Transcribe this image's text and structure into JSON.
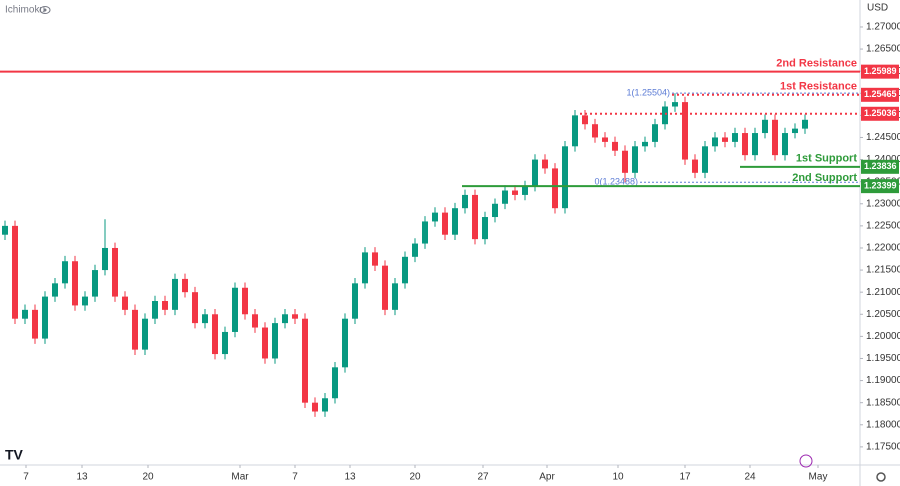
{
  "chart_data": {
    "type": "candlestick",
    "indicator": "Ichimoku",
    "currency": "USD",
    "up_color": "#089981",
    "down_color": "#f23645",
    "grid": false,
    "xlim": [
      -0.5,
      85.5
    ],
    "ylim": [
      1.1709,
      1.2761
    ],
    "xticks": [
      {
        "value": 2.1,
        "label": "7"
      },
      {
        "value": 7.7,
        "label": "13"
      },
      {
        "value": 14.3,
        "label": "20"
      },
      {
        "value": 23.5,
        "label": "Mar"
      },
      {
        "value": 29,
        "label": "7"
      },
      {
        "value": 34.5,
        "label": "13"
      },
      {
        "value": 41,
        "label": "20"
      },
      {
        "value": 47.8,
        "label": "27"
      },
      {
        "value": 54.2,
        "label": "Apr"
      },
      {
        "value": 61.3,
        "label": "10"
      },
      {
        "value": 68,
        "label": "17"
      },
      {
        "value": 74.5,
        "label": "24"
      },
      {
        "value": 81.3,
        "label": "May"
      }
    ],
    "yticks": [
      {
        "value": 1.27,
        "label": "1.27000"
      },
      {
        "value": 1.265,
        "label": "1.26500"
      },
      {
        "value": 1.26,
        "label": "1.26000"
      },
      {
        "value": 1.255,
        "label": "1.25500"
      },
      {
        "value": 1.25,
        "label": "1.25000"
      },
      {
        "value": 1.245,
        "label": "1.24500"
      },
      {
        "value": 1.24,
        "label": "1.24000"
      },
      {
        "value": 1.235,
        "label": "1.23500"
      },
      {
        "value": 1.23,
        "label": "1.23000"
      },
      {
        "value": 1.225,
        "label": "1.22500"
      },
      {
        "value": 1.22,
        "label": "1.22000"
      },
      {
        "value": 1.215,
        "label": "1.21500"
      },
      {
        "value": 1.21,
        "label": "1.21000"
      },
      {
        "value": 1.205,
        "label": "1.20500"
      },
      {
        "value": 1.2,
        "label": "1.20000"
      },
      {
        "value": 1.195,
        "label": "1.19500"
      },
      {
        "value": 1.19,
        "label": "1.19000"
      },
      {
        "value": 1.185,
        "label": "1.18500"
      },
      {
        "value": 1.18,
        "label": "1.18000"
      },
      {
        "value": 1.175,
        "label": "1.17500"
      }
    ],
    "x": [
      0,
      1,
      2,
      3,
      4,
      5,
      6,
      7,
      8,
      9,
      10,
      11,
      12,
      13,
      14,
      15,
      16,
      17,
      18,
      19,
      20,
      21,
      22,
      23,
      24,
      25,
      26,
      27,
      28,
      29,
      30,
      31,
      32,
      33,
      34,
      35,
      36,
      37,
      38,
      39,
      40,
      41,
      42,
      43,
      44,
      45,
      46,
      47,
      48,
      49,
      50,
      51,
      52,
      53,
      54,
      55,
      56,
      57,
      58,
      59,
      60,
      61,
      62,
      63,
      64,
      65,
      66,
      67,
      68,
      69,
      70,
      71,
      72,
      73,
      74,
      75,
      76,
      77,
      78,
      79,
      80
    ],
    "open": [
      1.223,
      1.225,
      1.204,
      1.206,
      1.1995,
      1.209,
      1.212,
      1.217,
      1.207,
      1.209,
      1.215,
      1.22,
      1.209,
      1.206,
      1.197,
      1.204,
      1.208,
      1.206,
      1.213,
      1.21,
      1.203,
      1.205,
      1.196,
      1.201,
      1.211,
      1.205,
      1.202,
      1.195,
      1.203,
      1.205,
      1.204,
      1.185,
      1.183,
      1.186,
      1.193,
      1.204,
      1.212,
      1.219,
      1.216,
      1.206,
      1.212,
      1.218,
      1.221,
      1.226,
      1.228,
      1.223,
      1.229,
      1.232,
      1.222,
      1.227,
      1.23,
      1.233,
      1.232,
      1.234,
      1.24,
      1.238,
      1.229,
      1.243,
      1.25,
      1.248,
      1.245,
      1.244,
      1.242,
      1.237,
      1.243,
      1.244,
      1.248,
      1.252,
      1.253,
      1.24,
      1.237,
      1.243,
      1.245,
      1.244,
      1.246,
      1.241,
      1.246,
      1.249,
      1.241,
      1.246,
      1.247
    ],
    "high": [
      1.2262,
      1.2262,
      1.2072,
      1.2072,
      1.2102,
      1.2132,
      1.2182,
      1.2182,
      1.2102,
      1.2162,
      1.2265,
      1.2212,
      1.2102,
      1.2072,
      1.2052,
      1.2092,
      1.2092,
      1.2142,
      1.2142,
      1.2112,
      1.2062,
      1.2062,
      1.2022,
      1.2122,
      1.2122,
      1.2062,
      1.2032,
      1.2042,
      1.2062,
      1.2062,
      1.2052,
      1.1862,
      1.1872,
      1.1942,
      1.2052,
      1.2132,
      1.2202,
      1.2202,
      1.2172,
      1.2132,
      1.2192,
      1.2222,
      1.2272,
      1.2292,
      1.2292,
      1.2302,
      1.2332,
      1.2332,
      1.2282,
      1.2312,
      1.2342,
      1.2342,
      1.2352,
      1.2412,
      1.2412,
      1.2392,
      1.2442,
      1.2512,
      1.2512,
      1.2492,
      1.2462,
      1.2452,
      1.2432,
      1.2442,
      1.2452,
      1.2492,
      1.2532,
      1.255,
      1.2542,
      1.2412,
      1.2442,
      1.2462,
      1.2462,
      1.2472,
      1.2472,
      1.2472,
      1.2502,
      1.2502,
      1.2472,
      1.2482,
      1.2502
    ],
    "low": [
      1.2218,
      1.2028,
      1.2028,
      1.1983,
      1.1983,
      1.2078,
      1.2108,
      1.2058,
      1.2058,
      1.2078,
      1.2138,
      1.2078,
      1.2048,
      1.1958,
      1.1958,
      1.2028,
      1.2048,
      1.2048,
      1.2088,
      1.2018,
      1.2018,
      1.1948,
      1.1948,
      1.1998,
      1.2038,
      1.2008,
      1.1938,
      1.1938,
      1.2018,
      1.2028,
      1.1838,
      1.1818,
      1.1818,
      1.1848,
      1.1918,
      1.2028,
      1.2108,
      1.2148,
      1.2048,
      1.2048,
      1.2108,
      1.2168,
      1.2198,
      1.2248,
      1.2218,
      1.2218,
      1.2278,
      1.2208,
      1.2208,
      1.2258,
      1.2288,
      1.2308,
      1.2308,
      1.2328,
      1.2368,
      1.2278,
      1.2278,
      1.2418,
      1.2468,
      1.2438,
      1.2428,
      1.2408,
      1.2349,
      1.2358,
      1.2418,
      1.2428,
      1.2468,
      1.2508,
      1.2388,
      1.2358,
      1.2358,
      1.2418,
      1.2428,
      1.2428,
      1.2398,
      1.2398,
      1.2448,
      1.2398,
      1.2398,
      1.2448,
      1.2458
    ],
    "close": [
      1.225,
      1.204,
      1.206,
      1.1995,
      1.209,
      1.212,
      1.217,
      1.207,
      1.209,
      1.215,
      1.22,
      1.209,
      1.206,
      1.197,
      1.204,
      1.208,
      1.206,
      1.213,
      1.21,
      1.203,
      1.205,
      1.196,
      1.201,
      1.211,
      1.205,
      1.202,
      1.195,
      1.203,
      1.205,
      1.204,
      1.185,
      1.183,
      1.186,
      1.193,
      1.204,
      1.212,
      1.219,
      1.216,
      1.206,
      1.212,
      1.218,
      1.221,
      1.226,
      1.228,
      1.223,
      1.229,
      1.232,
      1.222,
      1.227,
      1.23,
      1.233,
      1.232,
      1.234,
      1.24,
      1.238,
      1.229,
      1.243,
      1.25,
      1.248,
      1.245,
      1.244,
      1.242,
      1.237,
      1.243,
      1.244,
      1.248,
      1.252,
      1.253,
      1.24,
      1.237,
      1.243,
      1.245,
      1.244,
      1.246,
      1.241,
      1.246,
      1.249,
      1.241,
      1.246,
      1.247,
      1.249
    ],
    "levels": [
      {
        "name": "2nd Resistance",
        "value": 1.25989,
        "color": "#f23645",
        "from": -0.5,
        "style": "solid"
      },
      {
        "name": "1st Resistance",
        "value": 1.25465,
        "color": "#f23645",
        "from": 66.7,
        "style": "dotted"
      },
      {
        "value": 1.25036,
        "color": "#f23645",
        "from": 57.5,
        "style": "dotted"
      },
      {
        "name": "1st Support",
        "value": 1.23836,
        "color": "#2e9b3a",
        "from": 73.5,
        "style": "solid"
      },
      {
        "name": "2nd Support",
        "value": 1.23399,
        "color": "#2e9b3a",
        "from": 45.7,
        "style": "solid"
      }
    ],
    "fib": [
      {
        "label": "1(1.25504)",
        "value": 1.25504,
        "from": 66.7
      },
      {
        "label": "0(1.23488)",
        "value": 1.23488,
        "from": 63.5
      }
    ]
  }
}
